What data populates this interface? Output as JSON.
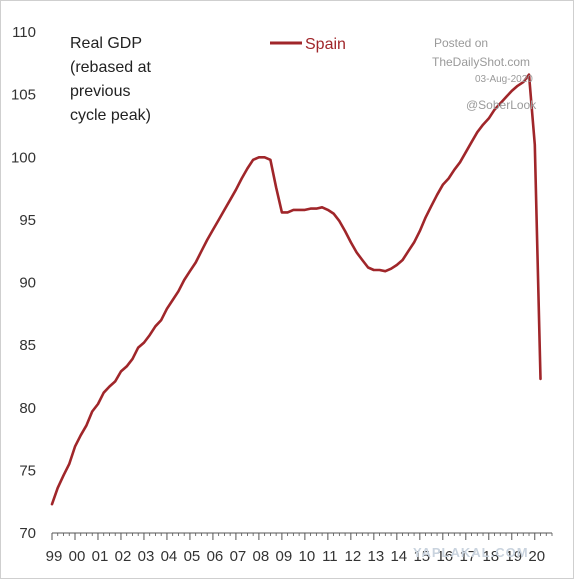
{
  "chart_data": {
    "type": "line",
    "title_lines": [
      "Real GDP",
      "(rebased at",
      "previous",
      "cycle peak)"
    ],
    "ylim": [
      70,
      110
    ],
    "yticks": [
      70,
      75,
      80,
      85,
      90,
      95,
      100,
      105,
      110
    ],
    "xlim": [
      1999,
      2020.75
    ],
    "xtick_labels": [
      "99",
      "00",
      "01",
      "02",
      "03",
      "04",
      "05",
      "06",
      "07",
      "08",
      "09",
      "10",
      "11",
      "12",
      "13",
      "14",
      "15",
      "16",
      "17",
      "18",
      "19",
      "20"
    ],
    "legend_position": "top-center",
    "grid": false,
    "colors": {
      "series": "#a0262a",
      "axis": "#555555"
    },
    "series": [
      {
        "name": "Spain",
        "x": [
          1999.0,
          1999.25,
          1999.5,
          1999.75,
          2000.0,
          2000.25,
          2000.5,
          2000.75,
          2001.0,
          2001.25,
          2001.5,
          2001.75,
          2002.0,
          2002.25,
          2002.5,
          2002.75,
          2003.0,
          2003.25,
          2003.5,
          2003.75,
          2004.0,
          2004.25,
          2004.5,
          2004.75,
          2005.0,
          2005.25,
          2005.5,
          2005.75,
          2006.0,
          2006.25,
          2006.5,
          2006.75,
          2007.0,
          2007.25,
          2007.5,
          2007.75,
          2008.0,
          2008.25,
          2008.5,
          2008.75,
          2009.0,
          2009.25,
          2009.5,
          2009.75,
          2010.0,
          2010.25,
          2010.5,
          2010.75,
          2011.0,
          2011.25,
          2011.5,
          2011.75,
          2012.0,
          2012.25,
          2012.5,
          2012.75,
          2013.0,
          2013.25,
          2013.5,
          2013.75,
          2014.0,
          2014.25,
          2014.5,
          2014.75,
          2015.0,
          2015.25,
          2015.5,
          2015.75,
          2016.0,
          2016.25,
          2016.5,
          2016.75,
          2017.0,
          2017.25,
          2017.5,
          2017.75,
          2018.0,
          2018.25,
          2018.5,
          2018.75,
          2019.0,
          2019.25,
          2019.5,
          2019.75,
          2020.0,
          2020.25
        ],
        "values": [
          72.3,
          73.6,
          74.6,
          75.5,
          76.9,
          77.8,
          78.6,
          79.7,
          80.3,
          81.2,
          81.7,
          82.1,
          82.9,
          83.3,
          83.9,
          84.8,
          85.2,
          85.8,
          86.5,
          87.0,
          87.9,
          88.6,
          89.3,
          90.2,
          90.9,
          91.6,
          92.5,
          93.4,
          94.2,
          95.0,
          95.8,
          96.6,
          97.4,
          98.3,
          99.1,
          99.8,
          100.0,
          100.0,
          99.8,
          97.6,
          95.6,
          95.6,
          95.8,
          95.8,
          95.8,
          95.9,
          95.9,
          96.0,
          95.8,
          95.5,
          94.9,
          94.1,
          93.2,
          92.4,
          91.8,
          91.2,
          91.0,
          91.0,
          90.9,
          91.1,
          91.4,
          91.8,
          92.5,
          93.2,
          94.1,
          95.2,
          96.1,
          97.0,
          97.8,
          98.3,
          99.0,
          99.6,
          100.4,
          101.2,
          102.0,
          102.6,
          103.1,
          103.8,
          104.3,
          104.8,
          105.3,
          105.7,
          106.0,
          106.6,
          101.0,
          82.3
        ]
      }
    ]
  },
  "watermarks": {
    "posted_on": "Posted on",
    "site": "TheDailyShot.com",
    "date": "03-Aug-2020",
    "handle": "@SoberLook",
    "yaplakal": "YAPLAKAL.COM"
  }
}
